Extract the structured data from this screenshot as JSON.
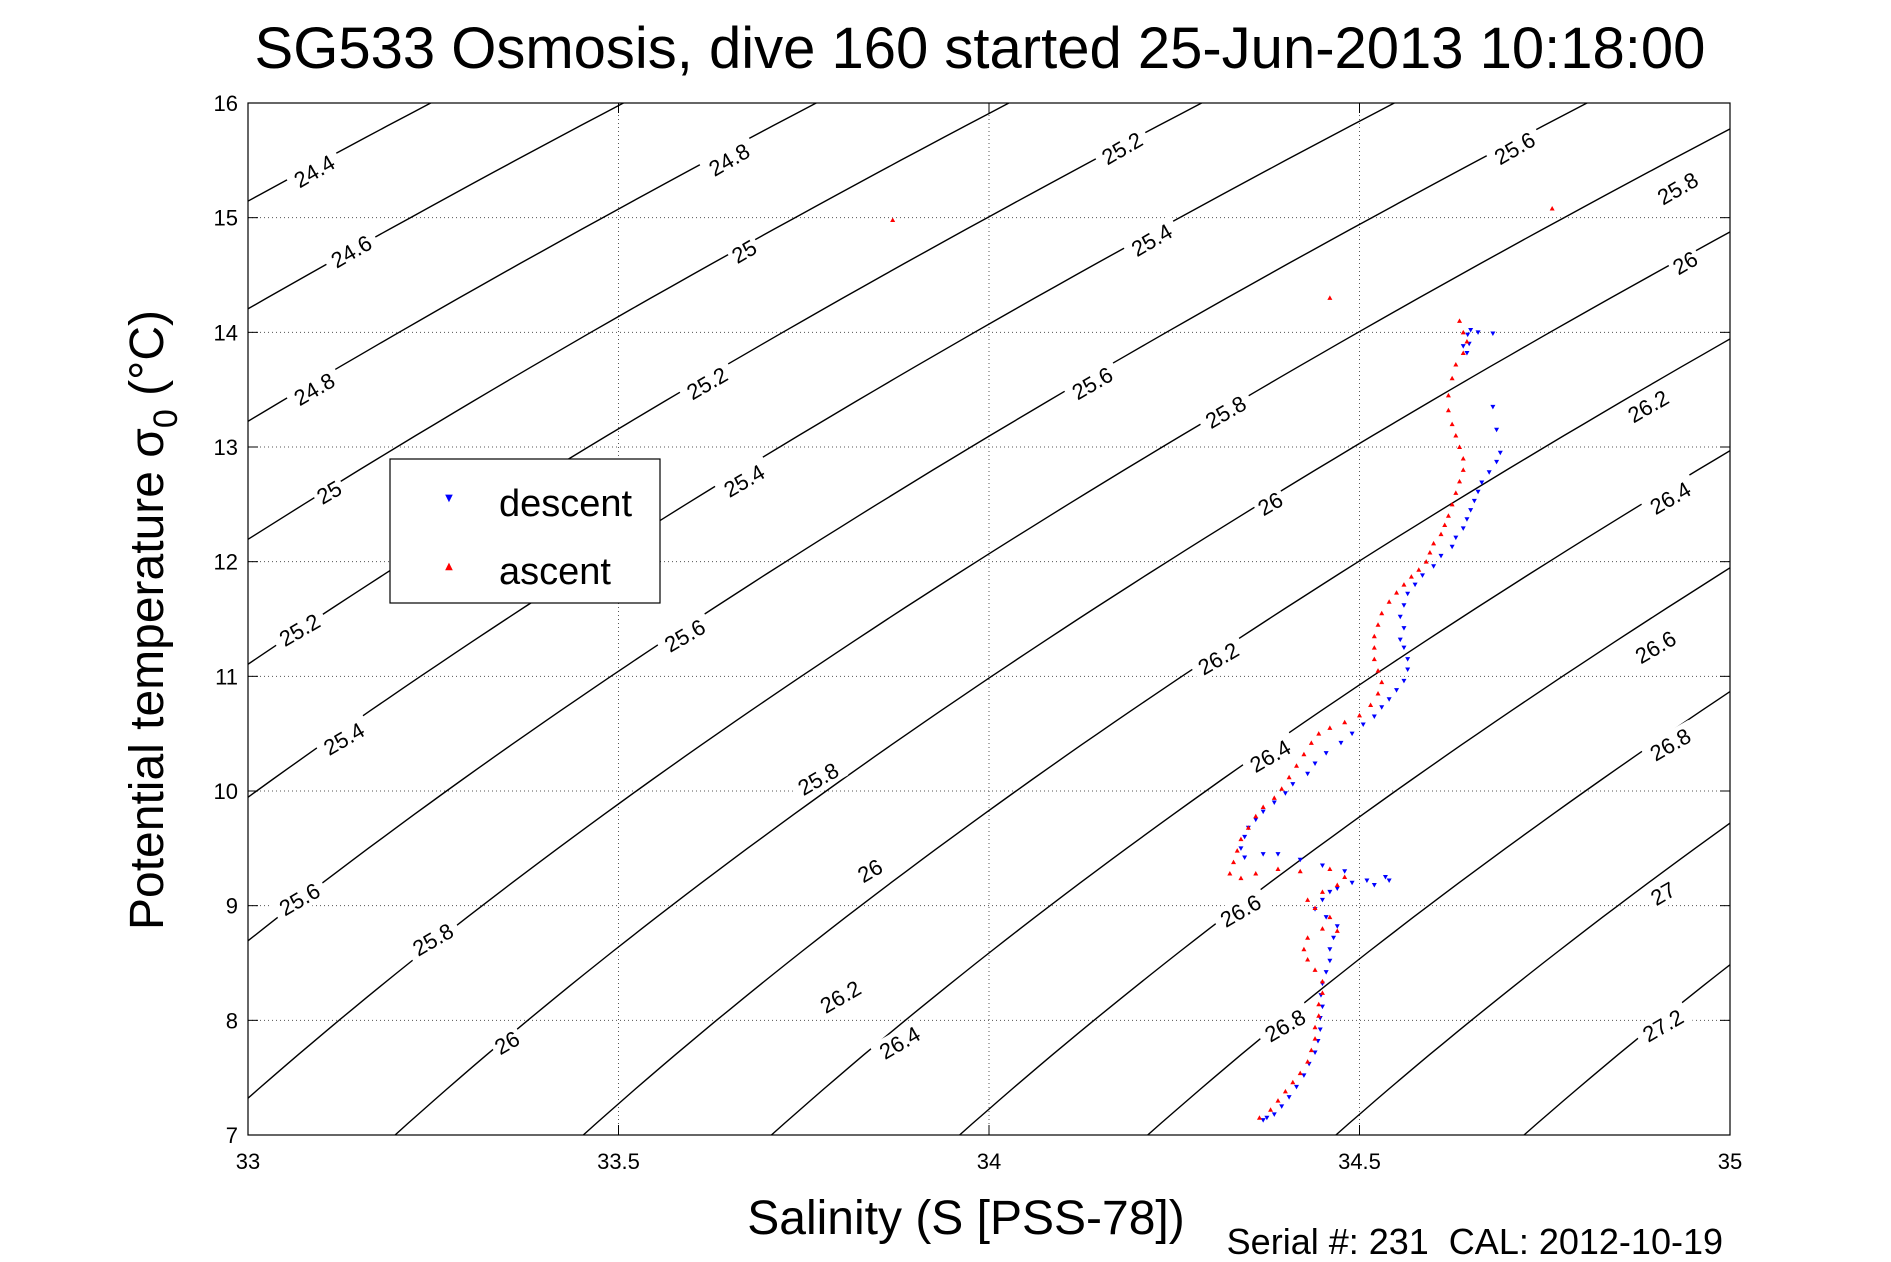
{
  "chart_data": {
    "type": "scatter",
    "title": "SG533 Osmosis, dive 160 started 25-Jun-2013 10:18:00",
    "xlabel": "Salinity (S [PSS-78])",
    "ylabel_main": "Potential temperature σ",
    "ylabel_sub": "0",
    "ylabel_unit": " (°C)",
    "xlim": [
      33,
      35
    ],
    "ylim": [
      7,
      16
    ],
    "x_ticks": [
      "33",
      "33.5",
      "34",
      "34.5",
      "35"
    ],
    "y_ticks": [
      "7",
      "8",
      "9",
      "10",
      "11",
      "12",
      "13",
      "14",
      "15",
      "16"
    ],
    "grid": true,
    "legend_position": "upper-left",
    "footer": "Serial #: 231  CAL: 2012-10-19",
    "contour_levels": [
      24.4,
      24.6,
      24.8,
      25,
      25.2,
      25.4,
      25.6,
      25.8,
      26,
      26.2,
      26.4,
      26.6,
      26.8,
      27,
      27.2
    ],
    "contour_labels": [
      {
        "text": "24.4",
        "s": 33.09,
        "t": 15.4
      },
      {
        "text": "24.6",
        "s": 33.14,
        "t": 14.7
      },
      {
        "text": "24.8",
        "s": 33.09,
        "t": 13.5
      },
      {
        "text": "25",
        "s": 33.11,
        "t": 12.6
      },
      {
        "text": "25.2",
        "s": 33.07,
        "t": 11.4
      },
      {
        "text": "25.4",
        "s": 33.13,
        "t": 10.45
      },
      {
        "text": "25.6",
        "s": 33.07,
        "t": 9.05
      },
      {
        "text": "25.8",
        "s": 33.25,
        "t": 8.7
      },
      {
        "text": "26",
        "s": 33.35,
        "t": 7.8
      },
      {
        "text": "24.8",
        "s": 33.65,
        "t": 15.5
      },
      {
        "text": "25",
        "s": 33.67,
        "t": 14.7
      },
      {
        "text": "25.2",
        "s": 33.62,
        "t": 13.55
      },
      {
        "text": "25.4",
        "s": 33.67,
        "t": 12.7
      },
      {
        "text": "25.6",
        "s": 33.59,
        "t": 11.35
      },
      {
        "text": "25.8",
        "s": 33.77,
        "t": 10.1
      },
      {
        "text": "26",
        "s": 33.84,
        "t": 9.3
      },
      {
        "text": "26.2",
        "s": 33.8,
        "t": 8.2
      },
      {
        "text": "26.4",
        "s": 33.88,
        "t": 7.8
      },
      {
        "text": "25.2",
        "s": 34.18,
        "t": 15.6
      },
      {
        "text": "25.4",
        "s": 34.22,
        "t": 14.8
      },
      {
        "text": "25.6",
        "s": 34.14,
        "t": 13.55
      },
      {
        "text": "25.8",
        "s": 34.32,
        "t": 13.3
      },
      {
        "text": "26",
        "s": 34.38,
        "t": 12.5
      },
      {
        "text": "26.2",
        "s": 34.31,
        "t": 11.15
      },
      {
        "text": "26.4",
        "s": 34.38,
        "t": 10.3
      },
      {
        "text": "26.6",
        "s": 34.34,
        "t": 8.95
      },
      {
        "text": "26.8",
        "s": 34.4,
        "t": 7.95
      },
      {
        "text": "25.6",
        "s": 34.71,
        "t": 15.6
      },
      {
        "text": "25.8",
        "s": 34.93,
        "t": 15.25
      },
      {
        "text": "26",
        "s": 34.94,
        "t": 14.6
      },
      {
        "text": "26.2",
        "s": 34.89,
        "t": 13.35
      },
      {
        "text": "26.4",
        "s": 34.92,
        "t": 12.55
      },
      {
        "text": "26.6",
        "s": 34.9,
        "t": 11.25
      },
      {
        "text": "26.8",
        "s": 34.92,
        "t": 10.4
      },
      {
        "text": "27",
        "s": 34.91,
        "t": 9.1
      },
      {
        "text": "27.2",
        "s": 34.91,
        "t": 7.95
      }
    ],
    "series": [
      {
        "name": "descent",
        "color": "#0000ff",
        "marker": "triangle-down",
        "points": [
          [
            34.37,
            7.13
          ],
          [
            34.375,
            7.15
          ],
          [
            34.385,
            7.18
          ],
          [
            34.395,
            7.25
          ],
          [
            34.405,
            7.33
          ],
          [
            34.415,
            7.42
          ],
          [
            34.425,
            7.52
          ],
          [
            34.432,
            7.62
          ],
          [
            34.44,
            7.72
          ],
          [
            34.444,
            7.82
          ],
          [
            34.447,
            7.92
          ],
          [
            34.447,
            8.02
          ],
          [
            34.45,
            8.12
          ],
          [
            34.448,
            8.22
          ],
          [
            34.45,
            8.32
          ],
          [
            34.455,
            8.42
          ],
          [
            34.46,
            8.52
          ],
          [
            34.46,
            8.62
          ],
          [
            34.465,
            8.72
          ],
          [
            34.47,
            8.82
          ],
          [
            34.455,
            8.9
          ],
          [
            34.44,
            8.97
          ],
          [
            34.45,
            9.05
          ],
          [
            34.46,
            9.12
          ],
          [
            34.47,
            9.15
          ],
          [
            34.49,
            9.2
          ],
          [
            34.51,
            9.22
          ],
          [
            34.535,
            9.25
          ],
          [
            34.54,
            9.22
          ],
          [
            34.52,
            9.18
          ],
          [
            34.48,
            9.3
          ],
          [
            34.45,
            9.35
          ],
          [
            34.42,
            9.4
          ],
          [
            34.39,
            9.45
          ],
          [
            34.37,
            9.45
          ],
          [
            34.345,
            9.42
          ],
          [
            34.34,
            9.5
          ],
          [
            34.345,
            9.6
          ],
          [
            34.35,
            9.68
          ],
          [
            34.36,
            9.75
          ],
          [
            34.37,
            9.82
          ],
          [
            34.385,
            9.9
          ],
          [
            34.4,
            9.98
          ],
          [
            34.41,
            10.06
          ],
          [
            34.43,
            10.15
          ],
          [
            34.44,
            10.24
          ],
          [
            34.455,
            10.33
          ],
          [
            34.475,
            10.42
          ],
          [
            34.49,
            10.5
          ],
          [
            34.505,
            10.58
          ],
          [
            34.52,
            10.65
          ],
          [
            34.53,
            10.73
          ],
          [
            34.54,
            10.8
          ],
          [
            34.55,
            10.88
          ],
          [
            34.56,
            10.96
          ],
          [
            34.565,
            11.06
          ],
          [
            34.565,
            11.15
          ],
          [
            34.56,
            11.25
          ],
          [
            34.555,
            11.32
          ],
          [
            34.56,
            11.42
          ],
          [
            34.555,
            11.52
          ],
          [
            34.56,
            11.62
          ],
          [
            34.565,
            11.72
          ],
          [
            34.575,
            11.8
          ],
          [
            34.585,
            11.88
          ],
          [
            34.6,
            11.96
          ],
          [
            34.61,
            12.05
          ],
          [
            34.625,
            12.13
          ],
          [
            34.63,
            12.21
          ],
          [
            34.64,
            12.29
          ],
          [
            34.645,
            12.37
          ],
          [
            34.65,
            12.45
          ],
          [
            34.655,
            12.53
          ],
          [
            34.66,
            12.61
          ],
          [
            34.665,
            12.69
          ],
          [
            34.675,
            12.78
          ],
          [
            34.685,
            12.87
          ],
          [
            34.69,
            12.95
          ],
          [
            34.685,
            13.15
          ],
          [
            34.68,
            13.35
          ],
          [
            34.645,
            13.82
          ],
          [
            34.648,
            13.9
          ],
          [
            34.646,
            13.98
          ],
          [
            34.65,
            14.02
          ],
          [
            34.68,
            13.99
          ],
          [
            34.66,
            14.0
          ],
          [
            34.64,
            13.88
          ]
        ]
      },
      {
        "name": "ascent",
        "color": "#ff0000",
        "marker": "triangle-up",
        "points": [
          [
            34.365,
            7.15
          ],
          [
            34.38,
            7.22
          ],
          [
            34.39,
            7.3
          ],
          [
            34.4,
            7.38
          ],
          [
            34.41,
            7.46
          ],
          [
            34.42,
            7.54
          ],
          [
            34.43,
            7.64
          ],
          [
            34.435,
            7.74
          ],
          [
            34.44,
            7.84
          ],
          [
            34.44,
            7.94
          ],
          [
            34.445,
            8.04
          ],
          [
            34.445,
            8.14
          ],
          [
            34.45,
            8.24
          ],
          [
            34.45,
            8.34
          ],
          [
            34.44,
            8.44
          ],
          [
            34.43,
            8.53
          ],
          [
            34.425,
            8.62
          ],
          [
            34.43,
            8.72
          ],
          [
            34.45,
            8.8
          ],
          [
            34.47,
            8.78
          ],
          [
            34.46,
            8.9
          ],
          [
            34.44,
            8.98
          ],
          [
            34.43,
            9.05
          ],
          [
            34.45,
            9.12
          ],
          [
            34.47,
            9.18
          ],
          [
            34.48,
            9.25
          ],
          [
            34.46,
            9.32
          ],
          [
            34.42,
            9.3
          ],
          [
            34.39,
            9.32
          ],
          [
            34.36,
            9.28
          ],
          [
            34.34,
            9.24
          ],
          [
            34.325,
            9.28
          ],
          [
            34.33,
            9.38
          ],
          [
            34.335,
            9.48
          ],
          [
            34.34,
            9.58
          ],
          [
            34.35,
            9.68
          ],
          [
            34.36,
            9.78
          ],
          [
            34.37,
            9.86
          ],
          [
            34.385,
            9.94
          ],
          [
            34.395,
            10.02
          ],
          [
            34.405,
            10.12
          ],
          [
            34.415,
            10.22
          ],
          [
            34.425,
            10.32
          ],
          [
            34.435,
            10.42
          ],
          [
            34.445,
            10.5
          ],
          [
            34.46,
            10.55
          ],
          [
            34.48,
            10.6
          ],
          [
            34.5,
            10.66
          ],
          [
            34.515,
            10.75
          ],
          [
            34.525,
            10.85
          ],
          [
            34.53,
            10.95
          ],
          [
            34.525,
            11.05
          ],
          [
            34.52,
            11.15
          ],
          [
            34.52,
            11.25
          ],
          [
            34.52,
            11.35
          ],
          [
            34.525,
            11.45
          ],
          [
            34.53,
            11.55
          ],
          [
            34.54,
            11.65
          ],
          [
            34.55,
            11.73
          ],
          [
            34.56,
            11.8
          ],
          [
            34.57,
            11.87
          ],
          [
            34.58,
            11.93
          ],
          [
            34.59,
            12.0
          ],
          [
            34.595,
            12.08
          ],
          [
            34.6,
            12.16
          ],
          [
            34.61,
            12.24
          ],
          [
            34.615,
            12.32
          ],
          [
            34.62,
            12.4
          ],
          [
            34.625,
            12.5
          ],
          [
            34.63,
            12.6
          ],
          [
            34.635,
            12.7
          ],
          [
            34.64,
            12.8
          ],
          [
            34.64,
            12.9
          ],
          [
            34.635,
            13.0
          ],
          [
            34.63,
            13.1
          ],
          [
            34.625,
            13.2
          ],
          [
            34.62,
            13.32
          ],
          [
            34.62,
            13.45
          ],
          [
            34.625,
            13.6
          ],
          [
            34.63,
            13.72
          ],
          [
            34.64,
            13.82
          ],
          [
            34.645,
            13.92
          ],
          [
            34.64,
            14.0
          ],
          [
            34.635,
            14.1
          ],
          [
            34.76,
            15.08
          ],
          [
            33.87,
            14.98
          ],
          [
            34.46,
            14.3
          ]
        ]
      }
    ]
  }
}
